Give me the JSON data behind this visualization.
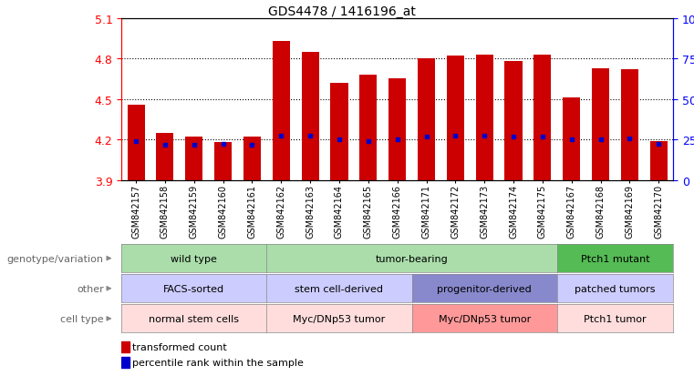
{
  "title": "GDS4478 / 1416196_at",
  "samples": [
    "GSM842157",
    "GSM842158",
    "GSM842159",
    "GSM842160",
    "GSM842161",
    "GSM842162",
    "GSM842163",
    "GSM842164",
    "GSM842165",
    "GSM842166",
    "GSM842171",
    "GSM842172",
    "GSM842173",
    "GSM842174",
    "GSM842175",
    "GSM842167",
    "GSM842168",
    "GSM842169",
    "GSM842170"
  ],
  "bar_values": [
    4.46,
    4.25,
    4.22,
    4.18,
    4.22,
    4.93,
    4.85,
    4.62,
    4.68,
    4.65,
    4.8,
    4.82,
    4.83,
    4.78,
    4.83,
    4.51,
    4.73,
    4.72,
    4.19
  ],
  "blue_values": [
    4.19,
    4.16,
    4.16,
    4.17,
    4.16,
    4.23,
    4.23,
    4.2,
    4.19,
    4.2,
    4.22,
    4.23,
    4.23,
    4.22,
    4.22,
    4.2,
    4.2,
    4.21,
    4.17
  ],
  "ymin": 3.9,
  "ymax": 5.1,
  "bar_color": "#cc0000",
  "blue_color": "#0000cc",
  "genotype_groups": [
    {
      "label": "wild type",
      "start": 0,
      "end": 5,
      "color": "#aaddaa"
    },
    {
      "label": "tumor-bearing",
      "start": 5,
      "end": 15,
      "color": "#aaddaa"
    },
    {
      "label": "Ptch1 mutant",
      "start": 15,
      "end": 19,
      "color": "#55bb55"
    }
  ],
  "other_groups": [
    {
      "label": "FACS-sorted",
      "start": 0,
      "end": 5,
      "color": "#ccccff"
    },
    {
      "label": "stem cell-derived",
      "start": 5,
      "end": 10,
      "color": "#ccccff"
    },
    {
      "label": "progenitor-derived",
      "start": 10,
      "end": 15,
      "color": "#8888cc"
    },
    {
      "label": "patched tumors",
      "start": 15,
      "end": 19,
      "color": "#ccccff"
    }
  ],
  "celltype_groups": [
    {
      "label": "normal stem cells",
      "start": 0,
      "end": 5,
      "color": "#ffdddd"
    },
    {
      "label": "Myc/DNp53 tumor",
      "start": 5,
      "end": 10,
      "color": "#ffdddd"
    },
    {
      "label": "Myc/DNp53 tumor",
      "start": 10,
      "end": 15,
      "color": "#ff9999"
    },
    {
      "label": "Ptch1 tumor",
      "start": 15,
      "end": 19,
      "color": "#ffdddd"
    }
  ],
  "row_labels": [
    "genotype/variation",
    "other",
    "cell type"
  ],
  "legend_items": [
    {
      "label": "transformed count",
      "color": "#cc0000"
    },
    {
      "label": "percentile rank within the sample",
      "color": "#0000cc"
    }
  ]
}
